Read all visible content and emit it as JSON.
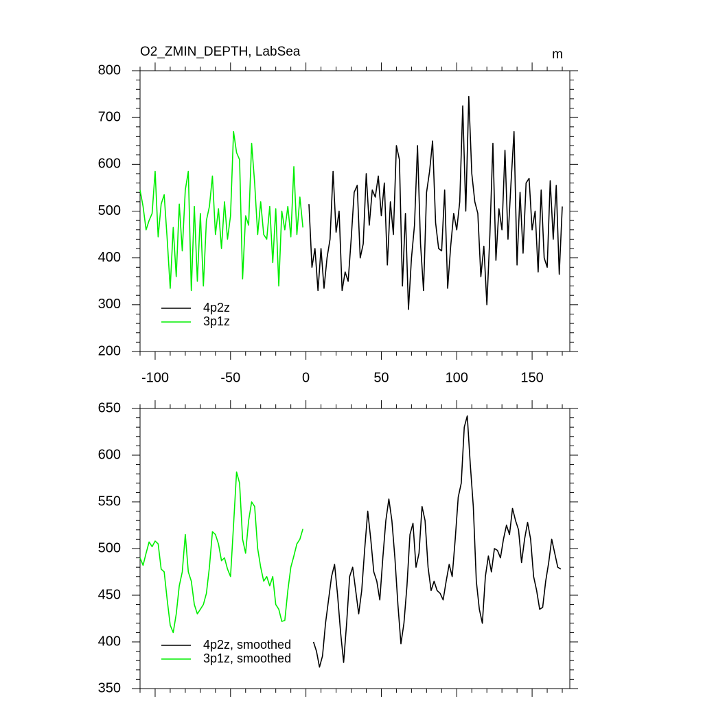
{
  "chart_data": [
    {
      "type": "line",
      "title": "O2_ZMIN_DEPTH, LabSea",
      "units": "m",
      "xlim": [
        -110,
        175
      ],
      "xticks": [
        -100,
        -50,
        0,
        50,
        100,
        150
      ],
      "xtick_labels": true,
      "ylim": [
        200,
        800
      ],
      "yticks": [
        200,
        300,
        400,
        500,
        600,
        700,
        800
      ],
      "minor_ticks": {
        "x": 4,
        "y": 4
      },
      "legend": "lower left",
      "series": [
        {
          "name": "4p2z",
          "color": "#000000",
          "x": [
            2,
            4,
            6,
            8,
            10,
            12,
            14,
            16,
            18,
            20,
            22,
            24,
            26,
            28,
            30,
            32,
            34,
            36,
            38,
            40,
            42,
            44,
            46,
            48,
            50,
            52,
            54,
            56,
            58,
            60,
            62,
            64,
            66,
            68,
            70,
            72,
            74,
            76,
            78,
            80,
            82,
            84,
            86,
            88,
            90,
            92,
            94,
            96,
            98,
            100,
            102,
            104,
            106,
            108,
            110,
            112,
            114,
            116,
            118,
            120,
            122,
            124,
            126,
            128,
            130,
            132,
            134,
            136,
            138,
            140,
            142,
            144,
            146,
            148,
            150,
            152,
            154,
            156,
            158,
            160,
            162,
            164,
            166,
            168,
            170
          ],
          "values": [
            515,
            380,
            420,
            330,
            420,
            335,
            400,
            440,
            585,
            455,
            500,
            330,
            370,
            350,
            440,
            540,
            555,
            400,
            430,
            580,
            470,
            545,
            530,
            575,
            490,
            560,
            385,
            520,
            450,
            640,
            610,
            340,
            495,
            290,
            400,
            470,
            640,
            430,
            330,
            540,
            585,
            650,
            475,
            420,
            415,
            545,
            335,
            425,
            495,
            460,
            520,
            725,
            500,
            745,
            580,
            520,
            495,
            360,
            425,
            300,
            450,
            645,
            395,
            505,
            460,
            630,
            440,
            560,
            670,
            385,
            540,
            410,
            560,
            570,
            460,
            500,
            370,
            545,
            400,
            380,
            565,
            440,
            555,
            365,
            510
          ]
        },
        {
          "name": "3p1z",
          "color": "#00ee00",
          "x": [
            -110,
            -108,
            -106,
            -104,
            -102,
            -100,
            -98,
            -96,
            -94,
            -92,
            -90,
            -88,
            -86,
            -84,
            -82,
            -80,
            -78,
            -76,
            -74,
            -72,
            -70,
            -68,
            -66,
            -64,
            -62,
            -60,
            -58,
            -56,
            -54,
            -52,
            -50,
            -48,
            -46,
            -44,
            -42,
            -40,
            -38,
            -36,
            -34,
            -32,
            -30,
            -28,
            -26,
            -24,
            -22,
            -20,
            -18,
            -16,
            -14,
            -12,
            -10,
            -8,
            -6,
            -4,
            -2
          ],
          "values": [
            545,
            510,
            460,
            480,
            495,
            585,
            445,
            515,
            535,
            440,
            335,
            465,
            360,
            515,
            415,
            545,
            585,
            330,
            510,
            350,
            495,
            340,
            480,
            510,
            575,
            450,
            505,
            420,
            520,
            440,
            490,
            670,
            625,
            610,
            355,
            490,
            470,
            645,
            560,
            450,
            520,
            450,
            440,
            510,
            390,
            505,
            340,
            500,
            460,
            510,
            445,
            595,
            450,
            530,
            465
          ]
        }
      ]
    },
    {
      "type": "line",
      "xlim": [
        -110,
        175
      ],
      "xticks": [
        -100,
        -50,
        0,
        50,
        100,
        150
      ],
      "xtick_labels": false,
      "ylim": [
        350,
        650
      ],
      "yticks": [
        350,
        400,
        450,
        500,
        550,
        600,
        650
      ],
      "minor_ticks": {
        "x": 4,
        "y": 4
      },
      "legend": "lower left",
      "series": [
        {
          "name": "4p2z, smoothed",
          "color": "#000000",
          "x": [
            5,
            7,
            9,
            11,
            13,
            15,
            17,
            19,
            21,
            23,
            25,
            27,
            29,
            31,
            33,
            35,
            37,
            39,
            41,
            43,
            45,
            47,
            49,
            51,
            53,
            55,
            57,
            59,
            61,
            63,
            65,
            67,
            69,
            71,
            73,
            75,
            77,
            79,
            81,
            83,
            85,
            87,
            89,
            91,
            93,
            95,
            97,
            99,
            101,
            103,
            105,
            107,
            109,
            111,
            113,
            115,
            117,
            119,
            121,
            123,
            125,
            127,
            129,
            131,
            133,
            135,
            137,
            139,
            141,
            143,
            145,
            147,
            149,
            151,
            153,
            155,
            157,
            159,
            161,
            163,
            165,
            167,
            169
          ],
          "values": [
            400,
            390,
            373,
            385,
            420,
            445,
            470,
            483,
            450,
            410,
            378,
            420,
            470,
            480,
            455,
            430,
            455,
            500,
            540,
            510,
            475,
            465,
            445,
            490,
            530,
            553,
            530,
            490,
            440,
            398,
            420,
            460,
            515,
            527,
            480,
            495,
            545,
            530,
            480,
            455,
            465,
            455,
            452,
            445,
            465,
            483,
            470,
            510,
            555,
            570,
            630,
            642,
            590,
            545,
            465,
            435,
            420,
            470,
            492,
            475,
            500,
            498,
            490,
            510,
            525,
            515,
            543,
            530,
            520,
            485,
            510,
            528,
            510,
            470,
            455,
            435,
            437,
            465,
            485,
            510,
            495,
            480,
            478
          ]
        },
        {
          "name": "3p1z, smoothed",
          "color": "#00ee00",
          "x": [
            -110,
            -108,
            -106,
            -104,
            -102,
            -100,
            -98,
            -96,
            -94,
            -92,
            -90,
            -88,
            -86,
            -84,
            -82,
            -80,
            -78,
            -76,
            -74,
            -72,
            -70,
            -68,
            -66,
            -64,
            -62,
            -60,
            -58,
            -56,
            -54,
            -52,
            -50,
            -48,
            -46,
            -44,
            -42,
            -40,
            -38,
            -36,
            -34,
            -32,
            -30,
            -28,
            -26,
            -24,
            -22,
            -20,
            -18,
            -16,
            -14,
            -12,
            -10,
            -8,
            -6,
            -4,
            -2
          ],
          "values": [
            490,
            482,
            495,
            507,
            502,
            508,
            505,
            478,
            475,
            445,
            418,
            410,
            430,
            460,
            475,
            515,
            475,
            465,
            440,
            430,
            435,
            440,
            452,
            480,
            518,
            515,
            505,
            487,
            490,
            478,
            470,
            525,
            582,
            570,
            510,
            495,
            530,
            550,
            545,
            500,
            480,
            465,
            470,
            460,
            470,
            440,
            435,
            422,
            423,
            455,
            480,
            492,
            505,
            510,
            521
          ]
        }
      ]
    }
  ]
}
